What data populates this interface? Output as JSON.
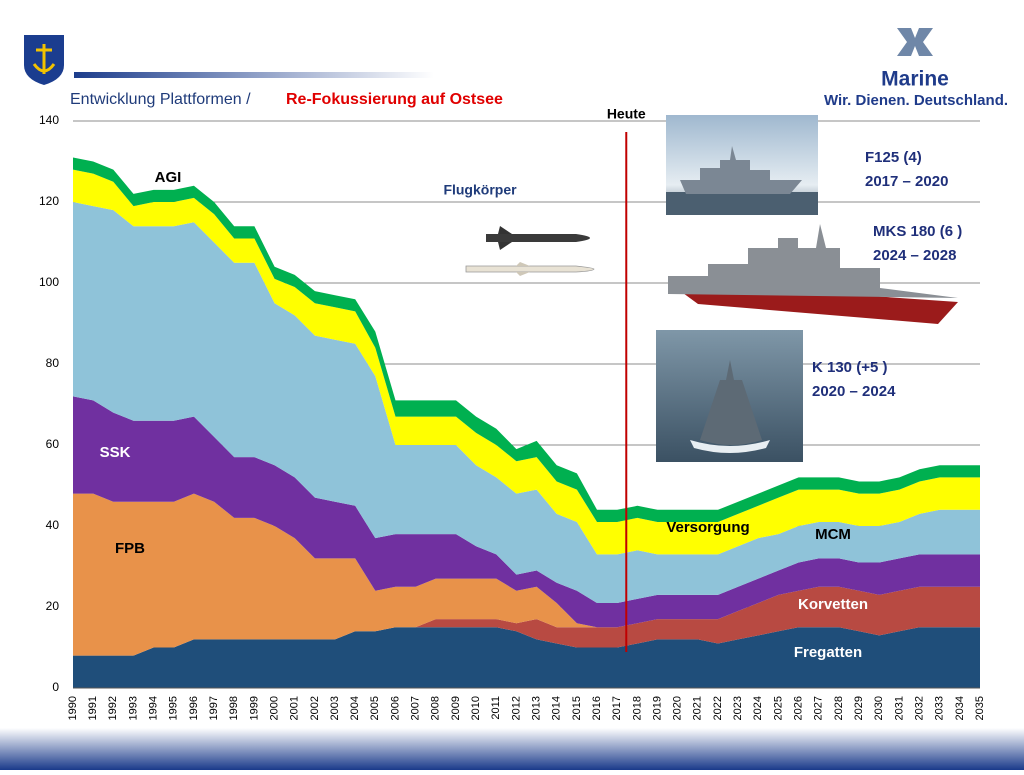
{
  "header": {
    "title": "Entwicklung Plattformen /",
    "highlight": "Re-Fokussierung auf Ostsee",
    "brand": "Marine",
    "slogan": "Wir. Dienen. Deutschland."
  },
  "chart_data": {
    "type": "area",
    "stacked": true,
    "grid": true,
    "categories": [
      "1990",
      "1991",
      "1992",
      "1993",
      "1994",
      "1995",
      "1996",
      "1997",
      "1998",
      "1999",
      "2000",
      "2001",
      "2002",
      "2003",
      "2004",
      "2005",
      "2006",
      "2007",
      "2008",
      "2009",
      "2010",
      "2011",
      "2012",
      "2013",
      "2014",
      "2015",
      "2016",
      "2017",
      "2018",
      "2019",
      "2020",
      "2021",
      "2022",
      "2023",
      "2024",
      "2025",
      "2026",
      "2027",
      "2028",
      "2029",
      "2030",
      "2031",
      "2032",
      "2033",
      "2034",
      "2035"
    ],
    "ylim": [
      0,
      140
    ],
    "yticks": [
      0,
      20,
      40,
      60,
      80,
      100,
      120,
      140
    ],
    "series": [
      {
        "name": "Fregatten",
        "color": "#1f4e7a",
        "values": [
          8,
          8,
          8,
          8,
          10,
          10,
          12,
          12,
          12,
          12,
          12,
          12,
          12,
          12,
          14,
          14,
          15,
          15,
          15,
          15,
          15,
          15,
          14,
          12,
          11,
          10,
          10,
          10,
          11,
          12,
          12,
          12,
          11,
          12,
          13,
          14,
          15,
          15,
          15,
          14,
          13,
          14,
          15,
          15,
          15,
          15
        ]
      },
      {
        "name": "Korvetten",
        "color": "#b84a42",
        "values": [
          0,
          0,
          0,
          0,
          0,
          0,
          0,
          0,
          0,
          0,
          0,
          0,
          0,
          0,
          0,
          0,
          0,
          0,
          2,
          2,
          2,
          2,
          2,
          5,
          4,
          5,
          5,
          5,
          5,
          5,
          5,
          5,
          6,
          7,
          8,
          9,
          9,
          10,
          10,
          10,
          10,
          10,
          10,
          10,
          10,
          10
        ]
      },
      {
        "name": "FPB",
        "color": "#e8924a",
        "values": [
          40,
          40,
          38,
          38,
          36,
          36,
          36,
          34,
          30,
          30,
          28,
          25,
          20,
          20,
          18,
          10,
          10,
          10,
          10,
          10,
          10,
          10,
          8,
          8,
          6,
          1,
          0,
          0,
          0,
          0,
          0,
          0,
          0,
          0,
          0,
          0,
          0,
          0,
          0,
          0,
          0,
          0,
          0,
          0,
          0,
          0
        ]
      },
      {
        "name": "SSK",
        "color": "#7030a0",
        "values": [
          24,
          23,
          22,
          20,
          20,
          20,
          19,
          16,
          15,
          15,
          15,
          15,
          15,
          14,
          13,
          13,
          13,
          13,
          11,
          11,
          8,
          6,
          4,
          4,
          5,
          8,
          6,
          6,
          6,
          6,
          6,
          6,
          6,
          6,
          6,
          6,
          7,
          7,
          7,
          7,
          8,
          8,
          8,
          8,
          8,
          8
        ]
      },
      {
        "name": "MCM",
        "color": "#8fc3d9",
        "values": [
          48,
          48,
          50,
          48,
          48,
          48,
          48,
          48,
          48,
          48,
          40,
          40,
          40,
          40,
          40,
          40,
          22,
          22,
          22,
          22,
          20,
          19,
          20,
          20,
          17,
          17,
          12,
          12,
          12,
          10,
          10,
          10,
          10,
          10,
          10,
          9,
          9,
          9,
          9,
          9,
          9,
          9,
          10,
          11,
          11,
          11
        ]
      },
      {
        "name": "Versorgung",
        "color": "#ffff00",
        "values": [
          8,
          8,
          7,
          5,
          6,
          6,
          6,
          7,
          6,
          6,
          6,
          7,
          8,
          8,
          8,
          7,
          7,
          7,
          7,
          7,
          8,
          8,
          8,
          8,
          8,
          8,
          8,
          8,
          8,
          8,
          8,
          8,
          8,
          8,
          8,
          9,
          9,
          8,
          8,
          8,
          8,
          8,
          8,
          8,
          8,
          8
        ]
      },
      {
        "name": "AGI",
        "color": "#00b050",
        "values": [
          3,
          3,
          3,
          3,
          3,
          3,
          3,
          3,
          3,
          3,
          3,
          3,
          3,
          3,
          3,
          4,
          4,
          4,
          4,
          4,
          4,
          4,
          3,
          4,
          4,
          4,
          3,
          3,
          3,
          3,
          3,
          3,
          3,
          3,
          3,
          3,
          3,
          3,
          3,
          3,
          3,
          3,
          3,
          3,
          3,
          3
        ]
      }
    ],
    "marker": {
      "label": "Heute",
      "year": 2017.45,
      "color": "#c00000"
    },
    "annotation": "Flugkörper",
    "ships": [
      {
        "name": "F125 (4)",
        "years": "2017 – 2020"
      },
      {
        "name": "MKS 180 (6 )",
        "years": "2024 – 2028"
      },
      {
        "name": "K 130 (+5 )",
        "years": "2020 – 2024"
      }
    ]
  }
}
